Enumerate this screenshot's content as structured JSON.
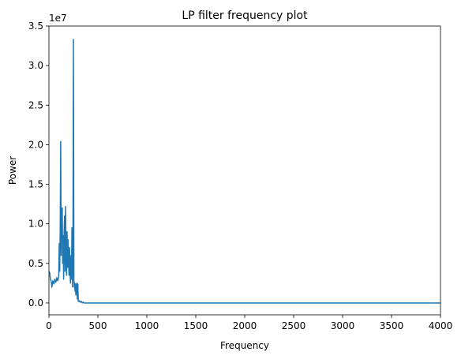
{
  "chart_data": {
    "type": "line",
    "title": "LP filter frequency plot",
    "xlabel": "Frequency",
    "ylabel": "Power",
    "y_offset_label": "1e7",
    "xlim": [
      0,
      4000
    ],
    "ylim": [
      -0.15,
      3.5
    ],
    "y_scale": 10000000,
    "grid": false,
    "x_ticks": [
      0,
      500,
      1000,
      1500,
      2000,
      2500,
      3000,
      3500,
      4000
    ],
    "x_tick_labels": [
      "0",
      "500",
      "1000",
      "1500",
      "2000",
      "2500",
      "3000",
      "3500",
      "4000"
    ],
    "y_ticks": [
      0.0,
      0.5,
      1.0,
      1.5,
      2.0,
      2.5,
      3.0,
      3.5
    ],
    "y_tick_labels": [
      "0.0",
      "0.5",
      "1.0",
      "1.5",
      "2.0",
      "2.5",
      "3.0",
      "3.5"
    ],
    "series": [
      {
        "name": "Power",
        "color": "#1f77b4",
        "x": [
          0,
          8,
          15,
          22,
          30,
          40,
          50,
          60,
          70,
          80,
          90,
          100,
          105,
          110,
          115,
          120,
          125,
          128,
          132,
          136,
          140,
          145,
          150,
          155,
          160,
          165,
          170,
          175,
          180,
          185,
          190,
          195,
          200,
          205,
          210,
          215,
          220,
          225,
          230,
          235,
          240,
          245,
          250,
          255,
          258,
          262,
          266,
          270,
          275,
          280,
          285,
          290,
          295,
          300,
          305,
          310,
          320,
          330,
          340,
          350,
          360,
          400,
          500,
          1000,
          2000,
          3000,
          4000
        ],
        "y": [
          0.4,
          0.38,
          0.3,
          0.28,
          0.2,
          0.28,
          0.24,
          0.3,
          0.26,
          0.32,
          0.28,
          0.33,
          0.75,
          0.4,
          0.95,
          2.04,
          0.6,
          1.2,
          0.9,
          1.2,
          0.5,
          0.85,
          0.3,
          0.9,
          1.1,
          0.4,
          1.22,
          0.6,
          0.35,
          0.9,
          0.45,
          0.8,
          0.55,
          0.35,
          0.7,
          0.4,
          0.25,
          0.6,
          0.3,
          0.95,
          0.2,
          0.5,
          3.33,
          0.3,
          0.2,
          0.25,
          0.15,
          0.24,
          0.1,
          0.2,
          0.25,
          0.05,
          0.24,
          0.02,
          0.02,
          0.03,
          0.01,
          0.02,
          0.0,
          0.01,
          0.0,
          0.0,
          0.0,
          0.0,
          0.0,
          0.0,
          0.0
        ]
      }
    ]
  }
}
